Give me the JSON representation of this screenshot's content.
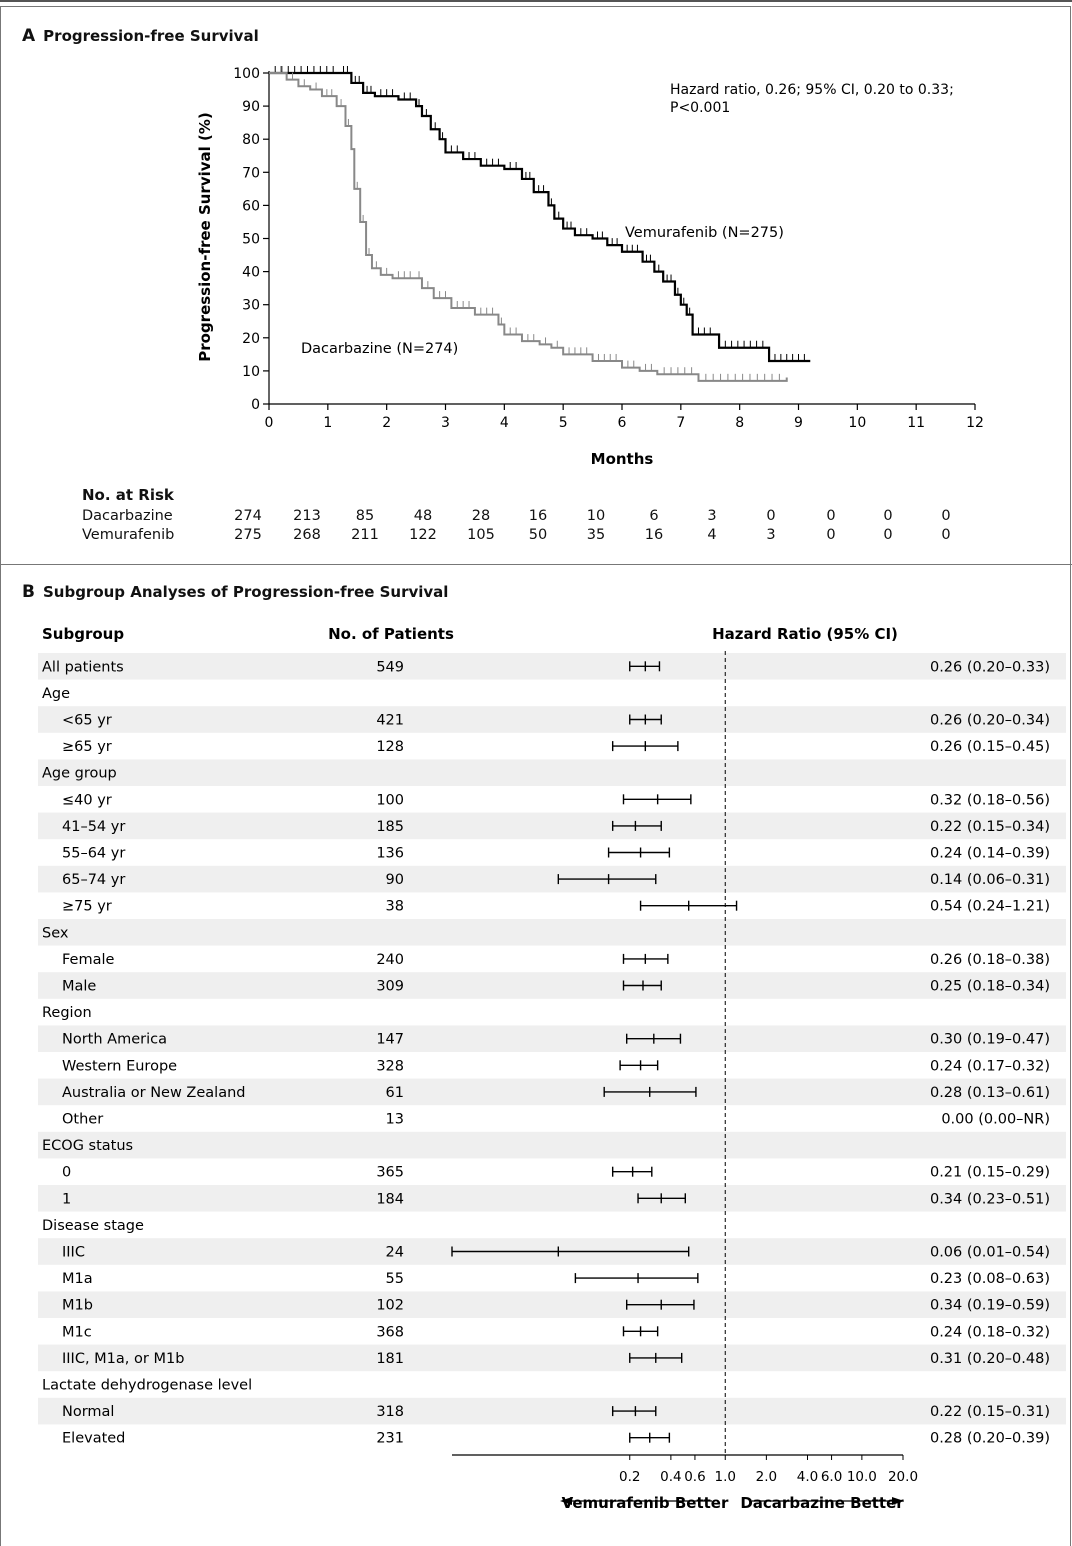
{
  "panel_a": {
    "letter": "A",
    "title": "Progression-free Survival",
    "hazard_text_line1": "Hazard ratio, 0.26; 95% CI, 0.20 to 0.33;",
    "hazard_text_line2": "P<0.001",
    "vem_label": "Vemurafenib (N=275)",
    "dac_label": "Dacarbazine (N=274)",
    "risk_title": "No. at Risk",
    "risk_rows": [
      {
        "name": "Dacarbazine",
        "values": [
          "274",
          "213",
          "85",
          "48",
          "28",
          "16",
          "10",
          "6",
          "3",
          "0",
          "0",
          "0",
          "0"
        ]
      },
      {
        "name": "Vemurafenib",
        "values": [
          "275",
          "268",
          "211",
          "122",
          "105",
          "50",
          "35",
          "16",
          "4",
          "3",
          "0",
          "0",
          "0"
        ]
      }
    ]
  },
  "panel_b": {
    "letter": "B",
    "title": "Subgroup Analyses of Progression-free Survival",
    "col_subgroup": "Subgroup",
    "col_patients": "No. of Patients",
    "col_hr": "Hazard Ratio (95% CI)",
    "left_arrow_label": "Vemurafenib Better",
    "right_arrow_label": "Dacarbazine Better"
  },
  "chart_data": [
    {
      "type": "line",
      "title": "Progression-free Survival",
      "xlabel": "Months",
      "ylabel": "Progression-free Survival (%)",
      "xlim": [
        0,
        12
      ],
      "ylim": [
        0,
        100
      ],
      "x_ticks": [
        "0",
        "1",
        "2",
        "3",
        "4",
        "5",
        "6",
        "7",
        "8",
        "9",
        "10",
        "11",
        "12"
      ],
      "y_ticks": [
        "0",
        "10",
        "20",
        "30",
        "40",
        "50",
        "60",
        "70",
        "80",
        "90",
        "100"
      ],
      "series": [
        {
          "name": "Vemurafenib (N=275)",
          "color": "#000000",
          "points": [
            [
              0,
              100
            ],
            [
              1.2,
              100
            ],
            [
              1.4,
              97
            ],
            [
              1.6,
              94
            ],
            [
              1.8,
              93
            ],
            [
              2.2,
              92
            ],
            [
              2.5,
              90
            ],
            [
              2.6,
              87
            ],
            [
              2.75,
              83
            ],
            [
              2.9,
              80
            ],
            [
              3.0,
              76
            ],
            [
              3.3,
              74
            ],
            [
              3.6,
              72
            ],
            [
              4.0,
              71
            ],
            [
              4.3,
              68
            ],
            [
              4.5,
              64
            ],
            [
              4.75,
              60
            ],
            [
              4.85,
              56
            ],
            [
              5.0,
              53
            ],
            [
              5.2,
              51
            ],
            [
              5.5,
              50
            ],
            [
              5.75,
              48
            ],
            [
              6.0,
              46
            ],
            [
              6.35,
              43
            ],
            [
              6.55,
              40
            ],
            [
              6.7,
              37
            ],
            [
              6.9,
              33
            ],
            [
              7.0,
              30
            ],
            [
              7.1,
              27
            ],
            [
              7.2,
              21
            ],
            [
              7.6,
              21
            ],
            [
              7.65,
              17
            ],
            [
              8.5,
              17
            ],
            [
              8.5,
              13
            ],
            [
              9.2,
              13
            ]
          ]
        },
        {
          "name": "Dacarbazine (N=274)",
          "color": "#888888",
          "points": [
            [
              0,
              100
            ],
            [
              0.3,
              98
            ],
            [
              0.5,
              96
            ],
            [
              0.7,
              95
            ],
            [
              0.9,
              93
            ],
            [
              1.15,
              90
            ],
            [
              1.3,
              84
            ],
            [
              1.4,
              77
            ],
            [
              1.45,
              65
            ],
            [
              1.55,
              55
            ],
            [
              1.65,
              45
            ],
            [
              1.75,
              41
            ],
            [
              1.9,
              39
            ],
            [
              2.1,
              38
            ],
            [
              2.5,
              38
            ],
            [
              2.6,
              35
            ],
            [
              2.8,
              32
            ],
            [
              3.1,
              29
            ],
            [
              3.5,
              27
            ],
            [
              3.9,
              24
            ],
            [
              4.0,
              21
            ],
            [
              4.3,
              19
            ],
            [
              4.6,
              18
            ],
            [
              4.8,
              17
            ],
            [
              5.0,
              15
            ],
            [
              5.5,
              13
            ],
            [
              6.0,
              11
            ],
            [
              6.3,
              10
            ],
            [
              6.6,
              9
            ],
            [
              7.3,
              8
            ],
            [
              7.3,
              7
            ],
            [
              8.8,
              7
            ],
            [
              8.8,
              8
            ]
          ]
        }
      ]
    },
    {
      "type": "forest",
      "title": "Subgroup Analyses of Progression-free Survival",
      "x_scale": "log",
      "x_ticks": [
        "0.2",
        "0.4",
        "0.6",
        "1.0",
        "2.0",
        "4.0",
        "6.0",
        "10.0",
        "20.0"
      ],
      "reference_line": 1.0,
      "rows": [
        {
          "label": "All patients",
          "indent": 0,
          "n": "549",
          "hr": 0.26,
          "lo": 0.2,
          "hi": 0.33,
          "text": "0.26 (0.20–0.33)"
        },
        {
          "label": "Age",
          "indent": 0,
          "n": "",
          "text": ""
        },
        {
          "label": "<65 yr",
          "indent": 1,
          "n": "421",
          "hr": 0.26,
          "lo": 0.2,
          "hi": 0.34,
          "text": "0.26 (0.20–0.34)"
        },
        {
          "label": "≥65 yr",
          "indent": 1,
          "n": "128",
          "hr": 0.26,
          "lo": 0.15,
          "hi": 0.45,
          "text": "0.26 (0.15–0.45)"
        },
        {
          "label": "Age group",
          "indent": 0,
          "n": "",
          "text": ""
        },
        {
          "label": "≤40 yr",
          "indent": 1,
          "n": "100",
          "hr": 0.32,
          "lo": 0.18,
          "hi": 0.56,
          "text": "0.32 (0.18–0.56)"
        },
        {
          "label": "41–54 yr",
          "indent": 1,
          "n": "185",
          "hr": 0.22,
          "lo": 0.15,
          "hi": 0.34,
          "text": "0.22 (0.15–0.34)"
        },
        {
          "label": "55–64 yr",
          "indent": 1,
          "n": "136",
          "hr": 0.24,
          "lo": 0.14,
          "hi": 0.39,
          "text": "0.24 (0.14–0.39)"
        },
        {
          "label": "65–74 yr",
          "indent": 1,
          "n": "90",
          "hr": 0.14,
          "lo": 0.06,
          "hi": 0.31,
          "text": "0.14 (0.06–0.31)"
        },
        {
          "label": "≥75 yr",
          "indent": 1,
          "n": "38",
          "hr": 0.54,
          "lo": 0.24,
          "hi": 1.21,
          "text": "0.54 (0.24–1.21)"
        },
        {
          "label": "Sex",
          "indent": 0,
          "n": "",
          "text": ""
        },
        {
          "label": "Female",
          "indent": 1,
          "n": "240",
          "hr": 0.26,
          "lo": 0.18,
          "hi": 0.38,
          "text": "0.26 (0.18–0.38)"
        },
        {
          "label": "Male",
          "indent": 1,
          "n": "309",
          "hr": 0.25,
          "lo": 0.18,
          "hi": 0.34,
          "text": "0.25 (0.18–0.34)"
        },
        {
          "label": "Region",
          "indent": 0,
          "n": "",
          "text": ""
        },
        {
          "label": "North America",
          "indent": 1,
          "n": "147",
          "hr": 0.3,
          "lo": 0.19,
          "hi": 0.47,
          "text": "0.30 (0.19–0.47)"
        },
        {
          "label": "Western Europe",
          "indent": 1,
          "n": "328",
          "hr": 0.24,
          "lo": 0.17,
          "hi": 0.32,
          "text": "0.24 (0.17–0.32)"
        },
        {
          "label": "Australia or New Zealand",
          "indent": 1,
          "n": "61",
          "hr": 0.28,
          "lo": 0.13,
          "hi": 0.61,
          "text": "0.28 (0.13–0.61)"
        },
        {
          "label": "Other",
          "indent": 1,
          "n": "13",
          "text": "0.00 (0.00–NR)"
        },
        {
          "label": "ECOG status",
          "indent": 0,
          "n": "",
          "text": ""
        },
        {
          "label": "0",
          "indent": 1,
          "n": "365",
          "hr": 0.21,
          "lo": 0.15,
          "hi": 0.29,
          "text": "0.21 (0.15–0.29)"
        },
        {
          "label": "1",
          "indent": 1,
          "n": "184",
          "hr": 0.34,
          "lo": 0.23,
          "hi": 0.51,
          "text": "0.34 (0.23–0.51)"
        },
        {
          "label": "Disease stage",
          "indent": 0,
          "n": "",
          "text": ""
        },
        {
          "label": "IIIC",
          "indent": 1,
          "n": "24",
          "hr": 0.06,
          "lo": 0.01,
          "hi": 0.54,
          "text": "0.06 (0.01–0.54)"
        },
        {
          "label": "M1a",
          "indent": 1,
          "n": "55",
          "hr": 0.23,
          "lo": 0.08,
          "hi": 0.63,
          "text": "0.23 (0.08–0.63)"
        },
        {
          "label": "M1b",
          "indent": 1,
          "n": "102",
          "hr": 0.34,
          "lo": 0.19,
          "hi": 0.59,
          "text": "0.34 (0.19–0.59)"
        },
        {
          "label": "M1c",
          "indent": 1,
          "n": "368",
          "hr": 0.24,
          "lo": 0.18,
          "hi": 0.32,
          "text": "0.24 (0.18–0.32)"
        },
        {
          "label": "IIIC, M1a, or M1b",
          "indent": 1,
          "n": "181",
          "hr": 0.31,
          "lo": 0.2,
          "hi": 0.48,
          "text": "0.31 (0.20–0.48)"
        },
        {
          "label": "Lactate dehydrogenase level",
          "indent": 0,
          "n": "",
          "text": ""
        },
        {
          "label": "Normal",
          "indent": 1,
          "n": "318",
          "hr": 0.22,
          "lo": 0.15,
          "hi": 0.31,
          "text": "0.22 (0.15–0.31)"
        },
        {
          "label": "Elevated",
          "indent": 1,
          "n": "231",
          "hr": 0.28,
          "lo": 0.2,
          "hi": 0.39,
          "text": "0.28 (0.20–0.39)"
        }
      ]
    }
  ]
}
